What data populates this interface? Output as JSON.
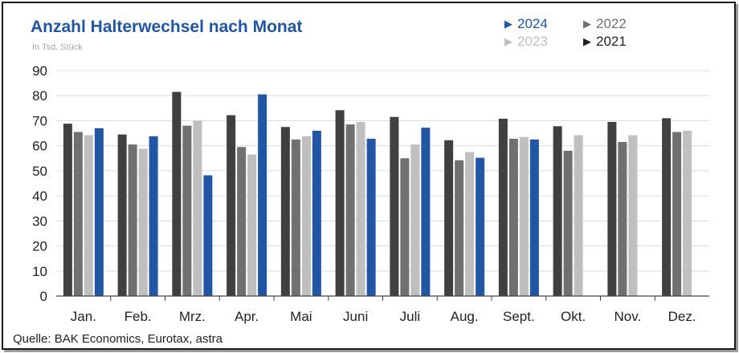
{
  "chart_data": {
    "type": "bar",
    "title": "Anzahl Halterwechsel nach Monat",
    "subtitle": "In Tsd. Stück",
    "source": "Quelle: BAK Economics, Eurotax, astra",
    "categories": [
      "Jan.",
      "Feb.",
      "Mrz.",
      "Apr.",
      "Mai",
      "Juni",
      "Juli",
      "Aug.",
      "Sept.",
      "Okt.",
      "Nov.",
      "Dez."
    ],
    "ylim": [
      0,
      90
    ],
    "yticks": [
      0,
      10,
      20,
      30,
      40,
      50,
      60,
      70,
      80,
      90
    ],
    "grid": true,
    "legend_position": "top-right",
    "series": [
      {
        "name": "2021",
        "color": "#404040",
        "values": [
          68.8,
          64.5,
          81.5,
          72.2,
          67.5,
          74.2,
          71.5,
          62.2,
          70.8,
          67.8,
          69.5,
          71.0
        ]
      },
      {
        "name": "2022",
        "color": "#707070",
        "values": [
          65.5,
          60.5,
          68.0,
          59.5,
          62.5,
          68.5,
          55.0,
          54.2,
          62.8,
          58.0,
          61.5,
          65.5
        ]
      },
      {
        "name": "2023",
        "color": "#bfbfbf",
        "values": [
          64.2,
          58.8,
          70.0,
          56.5,
          63.8,
          69.5,
          60.5,
          57.5,
          63.5,
          64.2,
          64.2,
          66.0
        ]
      },
      {
        "name": "2024",
        "color": "#2255a4",
        "values": [
          67.0,
          63.8,
          48.2,
          80.5,
          66.0,
          62.8,
          67.2,
          55.2,
          62.5,
          null,
          null,
          null
        ]
      }
    ]
  },
  "legend": [
    {
      "label": "2024",
      "color": "#2255a4"
    },
    {
      "label": "2022",
      "color": "#707070"
    },
    {
      "label": "2023",
      "color": "#bfbfbf"
    },
    {
      "label": "2021",
      "color": "#222222"
    }
  ],
  "legend_marker": "▶"
}
